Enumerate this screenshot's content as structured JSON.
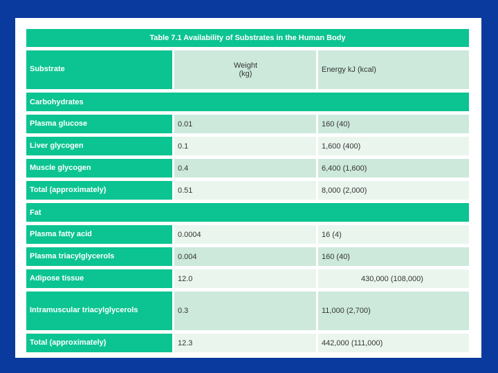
{
  "colors": {
    "background_blue": "#0a3a9e",
    "teal": "#0bc491",
    "cell_medium_green": "#cde9dc",
    "cell_light_green": "#eaf5ee",
    "text_dark": "#333333",
    "text_white": "#ffffff"
  },
  "table": {
    "title": "Table 7.1 Availability of Substrates in the Human Body",
    "header": {
      "substrate": "Substrate",
      "weight_line1": "Weight",
      "weight_line2": "(kg)",
      "energy": "Energy kJ (kcal)"
    },
    "rows": [
      {
        "type": "section",
        "label": "Carbohydrates"
      },
      {
        "type": "data",
        "label": "Plasma glucose",
        "weight": "0.01",
        "energy": "160 (40)",
        "shade": "medium"
      },
      {
        "type": "data",
        "label": "Liver glycogen",
        "weight": "0.1",
        "energy": "1,600 (400)",
        "shade": "light"
      },
      {
        "type": "data",
        "label": "Muscle glycogen",
        "weight": "0.4",
        "energy": "6,400 (1,600)",
        "shade": "medium"
      },
      {
        "type": "data",
        "label": "Total (approximately)",
        "weight": "0.51",
        "energy": "8,000 (2,000)",
        "shade": "light"
      },
      {
        "type": "section",
        "label": "Fat"
      },
      {
        "type": "data",
        "label": "Plasma fatty acid",
        "weight": "0.0004",
        "energy": "16 (4)",
        "shade": "light"
      },
      {
        "type": "data",
        "label": "Plasma triacylglycerols",
        "weight": "0.004",
        "energy": "160 (40)",
        "shade": "medium"
      },
      {
        "type": "data",
        "label": "Adipose tissue",
        "weight": "12.0",
        "energy": "430,000 (108,000)",
        "shade": "light",
        "energy_align": "center"
      },
      {
        "type": "data",
        "label": "Intramuscular triacylglycerols",
        "weight": "0.3",
        "energy": "11,000 (2,700)",
        "shade": "medium",
        "tall": true
      },
      {
        "type": "data",
        "label": "Total (approximately)",
        "weight": "12.3",
        "energy": "442,000 (111,000)",
        "shade": "light"
      }
    ]
  }
}
